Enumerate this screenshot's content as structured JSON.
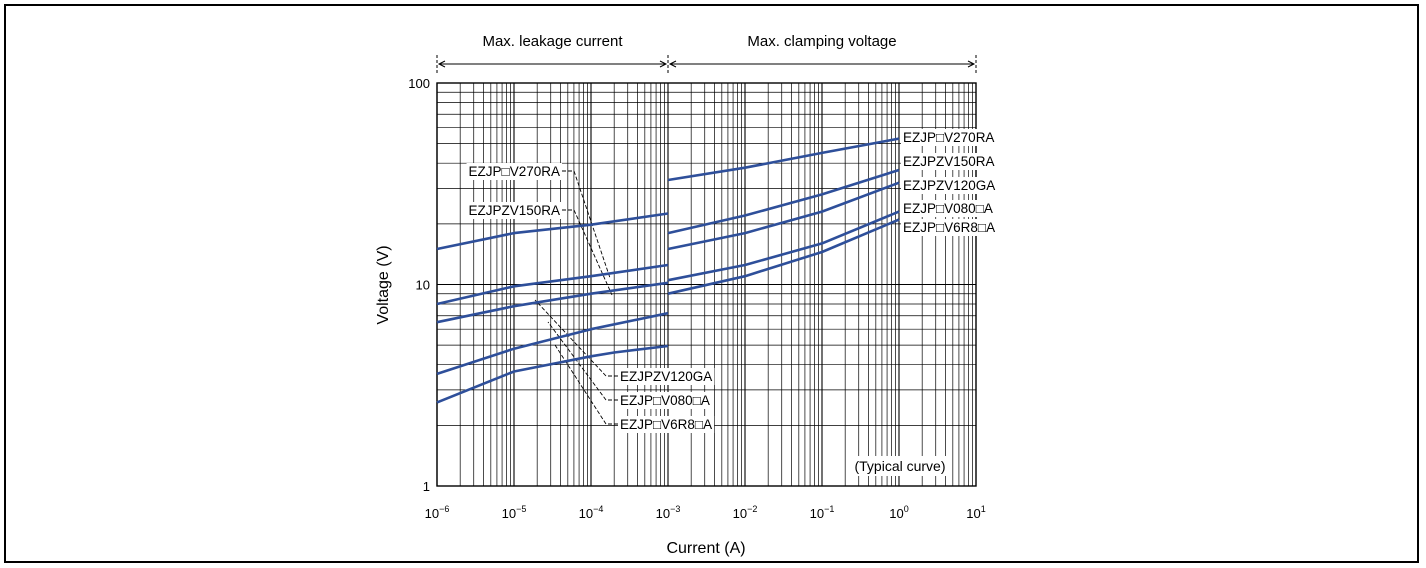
{
  "chart_data": {
    "type": "line",
    "xlabel": "Current (A)",
    "ylabel": "Voltage (V)",
    "x_scale": "log",
    "y_scale": "log",
    "xlim": [
      1e-06,
      10
    ],
    "ylim": [
      1,
      100
    ],
    "x_tick_labels": [
      {
        "base": "10",
        "exp": "−6"
      },
      {
        "base": "10",
        "exp": "−5"
      },
      {
        "base": "10",
        "exp": "−4"
      },
      {
        "base": "10",
        "exp": "−3"
      },
      {
        "base": "10",
        "exp": "−2"
      },
      {
        "base": "10",
        "exp": "−1"
      },
      {
        "base": "10",
        "exp": "0"
      },
      {
        "base": "10",
        "exp": "1"
      }
    ],
    "y_tick_labels": [
      "100",
      "10",
      "1"
    ],
    "grid": true,
    "regions": [
      {
        "label": "Max. leakage current",
        "x_from": 1e-06,
        "x_to": 0.001
      },
      {
        "label": "Max. clamping voltage",
        "x_from": 0.001,
        "x_to": 10
      }
    ],
    "annotation": "(Typical curve)",
    "line_color": "#2e4f9a",
    "series": [
      {
        "name": "EZJP□V270RA",
        "leakage": {
          "x": [
            1e-06,
            1e-05,
            0.0001,
            0.001
          ],
          "y": [
            15,
            18,
            19.8,
            22.5
          ]
        },
        "clamping": {
          "x": [
            0.001,
            0.01,
            0.1,
            1
          ],
          "y": [
            33,
            38,
            45,
            53
          ]
        }
      },
      {
        "name": "EZJPZV150RA",
        "leakage": {
          "x": [
            1e-06,
            1e-05,
            0.0001,
            0.001
          ],
          "y": [
            8,
            9.8,
            11,
            12.5
          ]
        },
        "clamping": {
          "x": [
            0.001,
            0.01,
            0.1,
            1
          ],
          "y": [
            18,
            22,
            28,
            37
          ]
        }
      },
      {
        "name": "EZJPZV120GA",
        "leakage": {
          "x": [
            1e-06,
            1e-05,
            0.0001,
            0.001
          ],
          "y": [
            6.5,
            7.8,
            9,
            10.2
          ]
        },
        "clamping": {
          "x": [
            0.001,
            0.01,
            0.1,
            1
          ],
          "y": [
            15,
            18,
            23,
            32
          ]
        }
      },
      {
        "name": "EZJP□V080□A",
        "leakage": {
          "x": [
            1e-06,
            1e-05,
            0.0001,
            0.001
          ],
          "y": [
            3.6,
            4.8,
            6,
            7.2
          ]
        },
        "clamping": {
          "x": [
            0.001,
            0.01,
            0.1,
            1
          ],
          "y": [
            10.5,
            12.5,
            16,
            23
          ]
        }
      },
      {
        "name": "EZJP□V6R8□A",
        "leakage": {
          "x": [
            1e-06,
            1e-05,
            0.0001,
            0.0002,
            0.001
          ],
          "y": [
            2.6,
            3.7,
            4.4,
            4.6,
            4.95
          ]
        },
        "clamping": {
          "x": [
            0.001,
            0.01,
            0.1,
            1
          ],
          "y": [
            9,
            11,
            14.5,
            21
          ]
        }
      }
    ],
    "right_labels": [
      "EZJP□V270RA",
      "EZJPZV150RA",
      "EZJPZV120GA",
      "EZJP□V080□A",
      "EZJP□V6R8□A"
    ],
    "left_upper_labels": [
      "EZJP□V270RA",
      "EZJPZV150RA"
    ],
    "left_lower_labels": [
      "EZJPZV120GA",
      "EZJP□V080□A",
      "EZJP□V6R8□A"
    ]
  }
}
